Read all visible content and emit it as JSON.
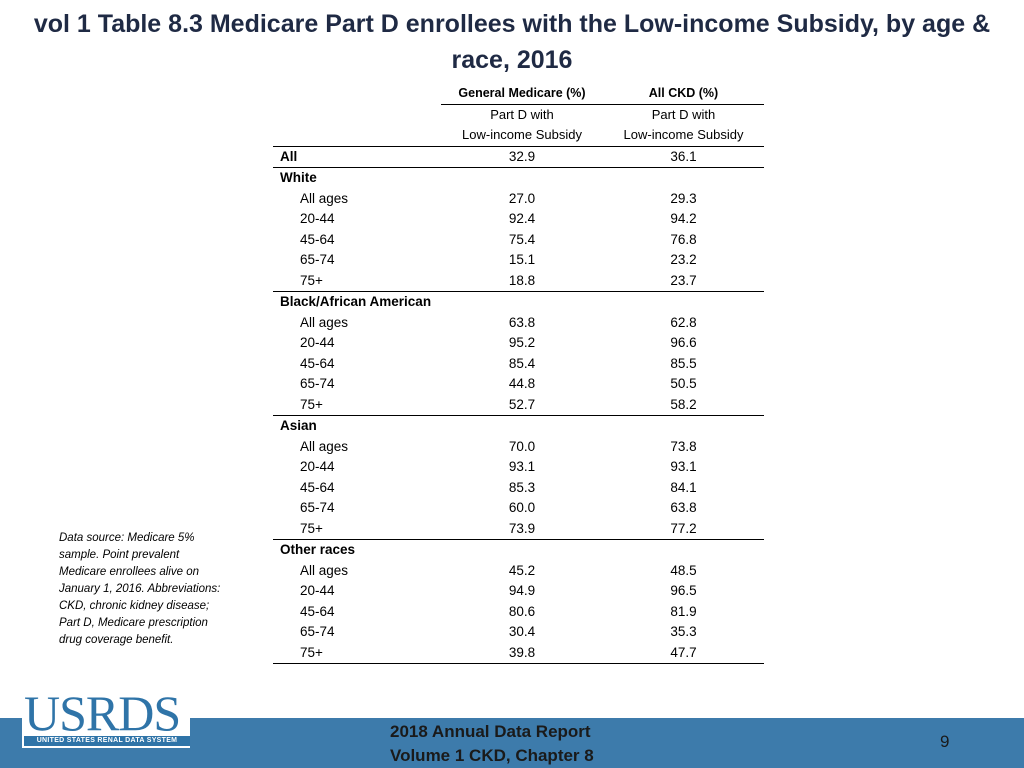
{
  "title": "vol 1 Table 8.3 Medicare Part D enrollees with the Low-income Subsidy, by age & race, 2016",
  "table": {
    "col_headers": {
      "general": "General Medicare (%)",
      "ckd": "All CKD (%)",
      "sub1": "Part D with",
      "sub2": "Low-income Subsidy"
    },
    "rows": [
      {
        "label": "All",
        "general": "32.9",
        "ckd": "36.1"
      },
      {
        "group": "White",
        "items": [
          {
            "label": "All ages",
            "general": "27.0",
            "ckd": "29.3"
          },
          {
            "label": "20-44",
            "general": "92.4",
            "ckd": "94.2"
          },
          {
            "label": "45-64",
            "general": "75.4",
            "ckd": "76.8"
          },
          {
            "label": "65-74",
            "general": "15.1",
            "ckd": "23.2"
          },
          {
            "label": "75+",
            "general": "18.8",
            "ckd": "23.7"
          }
        ]
      },
      {
        "group": "Black/African American",
        "items": [
          {
            "label": "All ages",
            "general": "63.8",
            "ckd": "62.8"
          },
          {
            "label": "20-44",
            "general": "95.2",
            "ckd": "96.6"
          },
          {
            "label": "45-64",
            "general": "85.4",
            "ckd": "85.5"
          },
          {
            "label": "65-74",
            "general": "44.8",
            "ckd": "50.5"
          },
          {
            "label": "75+",
            "general": "52.7",
            "ckd": "58.2"
          }
        ]
      },
      {
        "group": "Asian",
        "items": [
          {
            "label": "All ages",
            "general": "70.0",
            "ckd": "73.8"
          },
          {
            "label": "20-44",
            "general": "93.1",
            "ckd": "93.1"
          },
          {
            "label": "45-64",
            "general": "85.3",
            "ckd": "84.1"
          },
          {
            "label": "65-74",
            "general": "60.0",
            "ckd": "63.8"
          },
          {
            "label": "75+",
            "general": "73.9",
            "ckd": "77.2"
          }
        ]
      },
      {
        "group": "Other races",
        "items": [
          {
            "label": "All ages",
            "general": "45.2",
            "ckd": "48.5"
          },
          {
            "label": "20-44",
            "general": "94.9",
            "ckd": "96.5"
          },
          {
            "label": "45-64",
            "general": "80.6",
            "ckd": "81.9"
          },
          {
            "label": "65-74",
            "general": "30.4",
            "ckd": "35.3"
          },
          {
            "label": "75+",
            "general": "39.8",
            "ckd": "47.7"
          }
        ]
      }
    ]
  },
  "note": "Data source: Medicare 5% sample. Point prevalent Medicare enrollees alive on January 1, 2016. Abbreviations: CKD, chronic kidney disease; Part D, Medicare prescription drug coverage benefit.",
  "footer": {
    "logo": "USRDS",
    "logo_sub": "UNITED STATES RENAL DATA SYSTEM",
    "line1": "2018 Annual Data Report",
    "line2": "Volume 1 CKD, Chapter 8",
    "page": "9"
  },
  "colors": {
    "footer_bar": "#3d7bab",
    "logo": "#2f74a8",
    "title": "#1f2a44"
  }
}
